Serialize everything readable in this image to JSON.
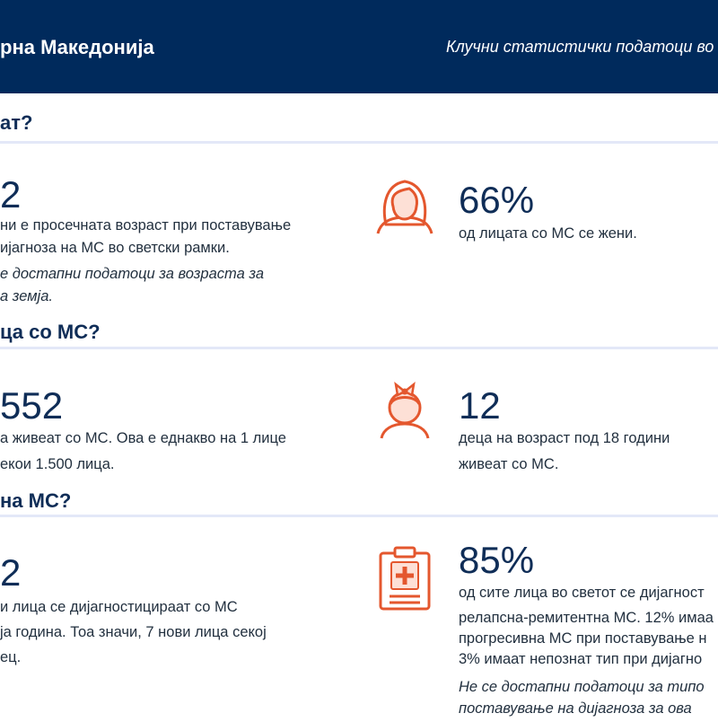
{
  "header": {
    "country": "рна Македонија",
    "subtitle": "Клучни статистички податоци во"
  },
  "colors": {
    "header_bg": "#002a5c",
    "heading": "#0f2d57",
    "icon_accent": "#e4572e",
    "icon_fill": "#fde0d6",
    "divider": "#e3e8f8"
  },
  "section1": {
    "title": "ат?",
    "left": {
      "value": "2",
      "line1": "ни е просечната возраст при поставување",
      "line2": "ијагноза на МС во светски рамки.",
      "note1": "е достапни податоци за возраста за",
      "note2": "а земја."
    },
    "right": {
      "icon": "woman-icon",
      "value": "66%",
      "line1": "од лицата со МС се жени."
    }
  },
  "section2": {
    "title": "ца со МС?",
    "left": {
      "value": "552",
      "line1": "а живеат со МС. Ова е еднакво на 1 лице",
      "line2": "екои 1.500 лица."
    },
    "right": {
      "icon": "child-icon",
      "value": "12",
      "line1": "деца на возраст под 18 години",
      "line2": "живеат со МС."
    }
  },
  "section3": {
    "title": "на МС?",
    "left": {
      "value": "2",
      "line1": "и лица се дијагностицираат со МС",
      "line2": "ја година. Тоа значи, 7 нови лица секој",
      "line3": "ец."
    },
    "right": {
      "icon": "medical-clipboard-icon",
      "value": "85%",
      "line1": "од сите лица во светот се дијагност",
      "line2": "релапсна-ремитентна МС. 12% имаа",
      "line3": "прогресивна МС при поставување н",
      "line4": "3% имаат непознат тип при дијагно",
      "note1": "Не се достапни податоци за типо",
      "note2": "поставување на дијагноза за ова"
    }
  }
}
